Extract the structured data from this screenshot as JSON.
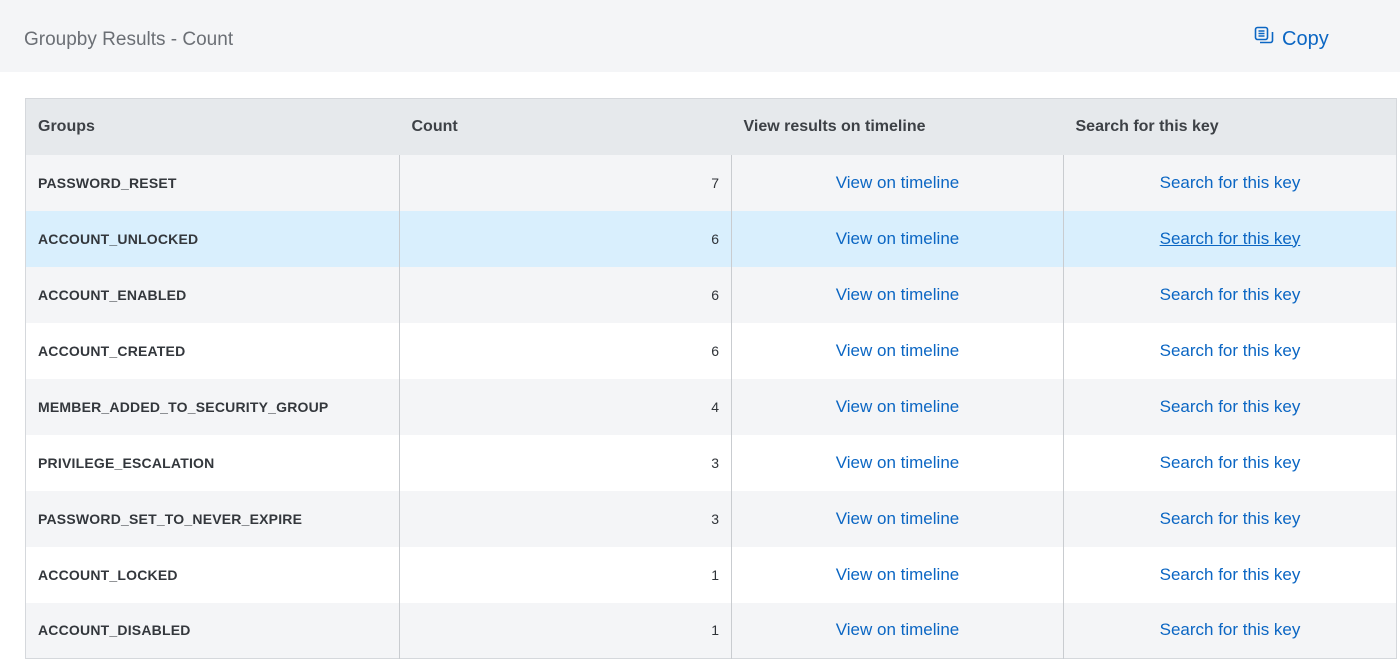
{
  "header": {
    "title": "Groupby Results - Count",
    "copy_label": "Copy",
    "copy_icon": "copy-icon"
  },
  "colors": {
    "link": "#0b66c3",
    "hover_row": "#d9effd",
    "header_bg": "#e6e9ec"
  },
  "table": {
    "columns": [
      "Groups",
      "Count",
      "View results on timeline",
      "Search for this key"
    ],
    "hovered_row": 1,
    "rows": [
      {
        "group": "PASSWORD_RESET",
        "count": "7",
        "timeline": "View on timeline",
        "search": "Search for this key"
      },
      {
        "group": "ACCOUNT_UNLOCKED",
        "count": "6",
        "timeline": "View on timeline",
        "search": "Search for this key"
      },
      {
        "group": "ACCOUNT_ENABLED",
        "count": "6",
        "timeline": "View on timeline",
        "search": "Search for this key"
      },
      {
        "group": "ACCOUNT_CREATED",
        "count": "6",
        "timeline": "View on timeline",
        "search": "Search for this key"
      },
      {
        "group": "MEMBER_ADDED_TO_SECURITY_GROUP",
        "count": "4",
        "timeline": "View on timeline",
        "search": "Search for this key"
      },
      {
        "group": "PRIVILEGE_ESCALATION",
        "count": "3",
        "timeline": "View on timeline",
        "search": "Search for this key"
      },
      {
        "group": "PASSWORD_SET_TO_NEVER_EXPIRE",
        "count": "3",
        "timeline": "View on timeline",
        "search": "Search for this key"
      },
      {
        "group": "ACCOUNT_LOCKED",
        "count": "1",
        "timeline": "View on timeline",
        "search": "Search for this key"
      },
      {
        "group": "ACCOUNT_DISABLED",
        "count": "1",
        "timeline": "View on timeline",
        "search": "Search for this key"
      }
    ]
  }
}
